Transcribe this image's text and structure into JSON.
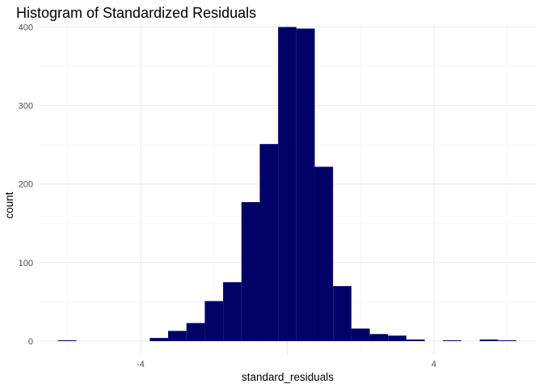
{
  "chart_data": {
    "type": "bar",
    "title": "Histogram of Standardized Residuals",
    "xlabel": "standard_residuals",
    "ylabel": "count",
    "bar_color": "#000066",
    "grid": true,
    "x_ticks": [
      -4,
      4
    ],
    "x_tick_labels": [
      "-4",
      "4"
    ],
    "y_ticks": [
      0,
      100,
      200,
      300,
      400
    ],
    "y_tick_labels": [
      "0",
      "100",
      "200",
      "300",
      "400"
    ],
    "xlim": [
      -6.8,
      6.8
    ],
    "ylim": [
      0,
      420
    ],
    "bin_width": 0.5,
    "bins": [
      {
        "x": -6.0,
        "count": 1
      },
      {
        "x": -3.5,
        "count": 4
      },
      {
        "x": -3.0,
        "count": 13
      },
      {
        "x": -2.5,
        "count": 23
      },
      {
        "x": -2.0,
        "count": 51
      },
      {
        "x": -1.5,
        "count": 75
      },
      {
        "x": -1.0,
        "count": 177
      },
      {
        "x": -0.5,
        "count": 251
      },
      {
        "x": 0.0,
        "count": 400
      },
      {
        "x": 0.5,
        "count": 398
      },
      {
        "x": 1.0,
        "count": 222
      },
      {
        "x": 1.5,
        "count": 70
      },
      {
        "x": 2.0,
        "count": 16
      },
      {
        "x": 2.5,
        "count": 9
      },
      {
        "x": 3.0,
        "count": 7
      },
      {
        "x": 3.5,
        "count": 2
      },
      {
        "x": 4.5,
        "count": 1
      },
      {
        "x": 5.5,
        "count": 2
      },
      {
        "x": 6.0,
        "count": 1
      }
    ]
  }
}
